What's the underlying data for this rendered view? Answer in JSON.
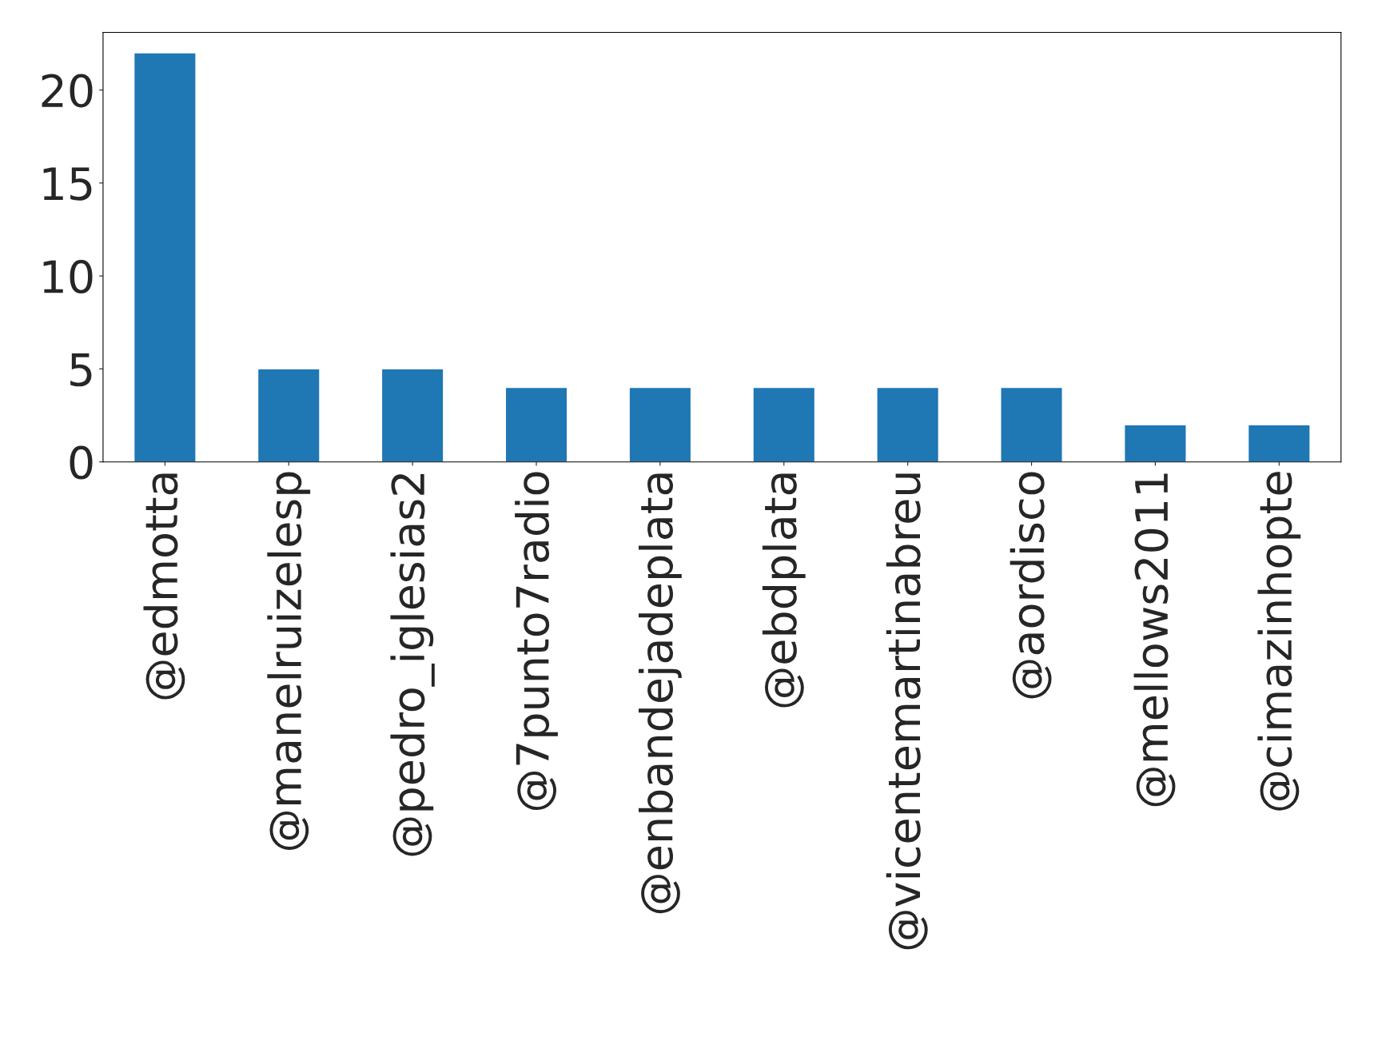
{
  "chart_data": {
    "type": "bar",
    "categories": [
      "@edmotta",
      "@manelruizelesp",
      "@pedro_iglesias2",
      "@7punto7radio",
      "@enbandejadeplata",
      "@ebdplata",
      "@vicentemartinabreu",
      "@aordisco",
      "@mellows2011",
      "@cimazinhopte"
    ],
    "values": [
      22,
      5,
      5,
      4,
      4,
      4,
      4,
      4,
      2,
      2
    ],
    "color": "#1f77b4",
    "ylim": [
      0,
      23.1
    ],
    "yticks": [
      0,
      5,
      10,
      15,
      20
    ],
    "grid": false,
    "legend": false
  }
}
